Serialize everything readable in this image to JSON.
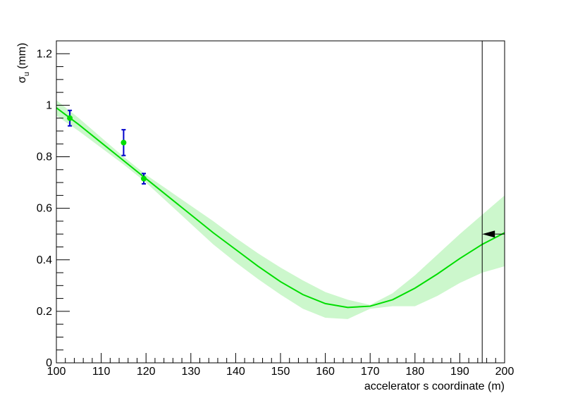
{
  "chart_data": {
    "type": "line",
    "xlabel": "accelerator s coordinate (m)",
    "ylabel": {
      "symbol": "σ",
      "subscript": "u",
      "unit": "(mm)"
    },
    "xlim": [
      100,
      200
    ],
    "ylim": [
      0,
      1.25
    ],
    "x_ticks": [
      100,
      110,
      120,
      130,
      140,
      150,
      160,
      170,
      180,
      190,
      200
    ],
    "x_tick_labels": [
      "100",
      "110",
      "120",
      "130",
      "140",
      "150",
      "160",
      "170",
      "180",
      "190",
      "200"
    ],
    "y_ticks": [
      0,
      0.2,
      0.4,
      0.6,
      0.8,
      1,
      1.2
    ],
    "y_tick_labels": [
      "0",
      "0.2",
      "0.4",
      "0.6",
      "0.8",
      "1",
      "1.2"
    ],
    "grid": false,
    "fit_curve": {
      "x": [
        100,
        105,
        110,
        115,
        120,
        125,
        130,
        135,
        140,
        145,
        150,
        155,
        160,
        165,
        170,
        175,
        180,
        185,
        190,
        195,
        200
      ],
      "y": [
        0.99,
        0.925,
        0.855,
        0.785,
        0.715,
        0.645,
        0.575,
        0.505,
        0.44,
        0.375,
        0.315,
        0.265,
        0.23,
        0.215,
        0.22,
        0.245,
        0.29,
        0.345,
        0.405,
        0.46,
        0.505
      ],
      "color": "#00dd00"
    },
    "uncertainty_band": {
      "x": [
        100,
        105,
        110,
        115,
        120,
        125,
        130,
        135,
        140,
        145,
        150,
        155,
        160,
        165,
        170,
        175,
        180,
        185,
        190,
        195,
        200
      ],
      "upper": [
        1.02,
        0.95,
        0.875,
        0.8,
        0.73,
        0.67,
        0.61,
        0.55,
        0.485,
        0.425,
        0.37,
        0.32,
        0.275,
        0.245,
        0.225,
        0.27,
        0.34,
        0.42,
        0.5,
        0.575,
        0.65
      ],
      "lower": [
        0.96,
        0.9,
        0.835,
        0.77,
        0.7,
        0.62,
        0.54,
        0.46,
        0.39,
        0.325,
        0.265,
        0.21,
        0.175,
        0.17,
        0.21,
        0.22,
        0.22,
        0.26,
        0.31,
        0.35,
        0.375
      ],
      "color": "#ccf7cc"
    },
    "measurements": [
      {
        "x": 103,
        "y": 0.95,
        "err": 0.03
      },
      {
        "x": 115,
        "y": 0.855,
        "err": 0.05
      },
      {
        "x": 119.5,
        "y": 0.715,
        "err": 0.02
      }
    ],
    "measurement_colors": {
      "marker": "#00dd00",
      "error_bar": "#0000cc"
    },
    "vertical_line_x": 195,
    "arrow_marker": {
      "x": 195,
      "y": 0.5
    }
  }
}
